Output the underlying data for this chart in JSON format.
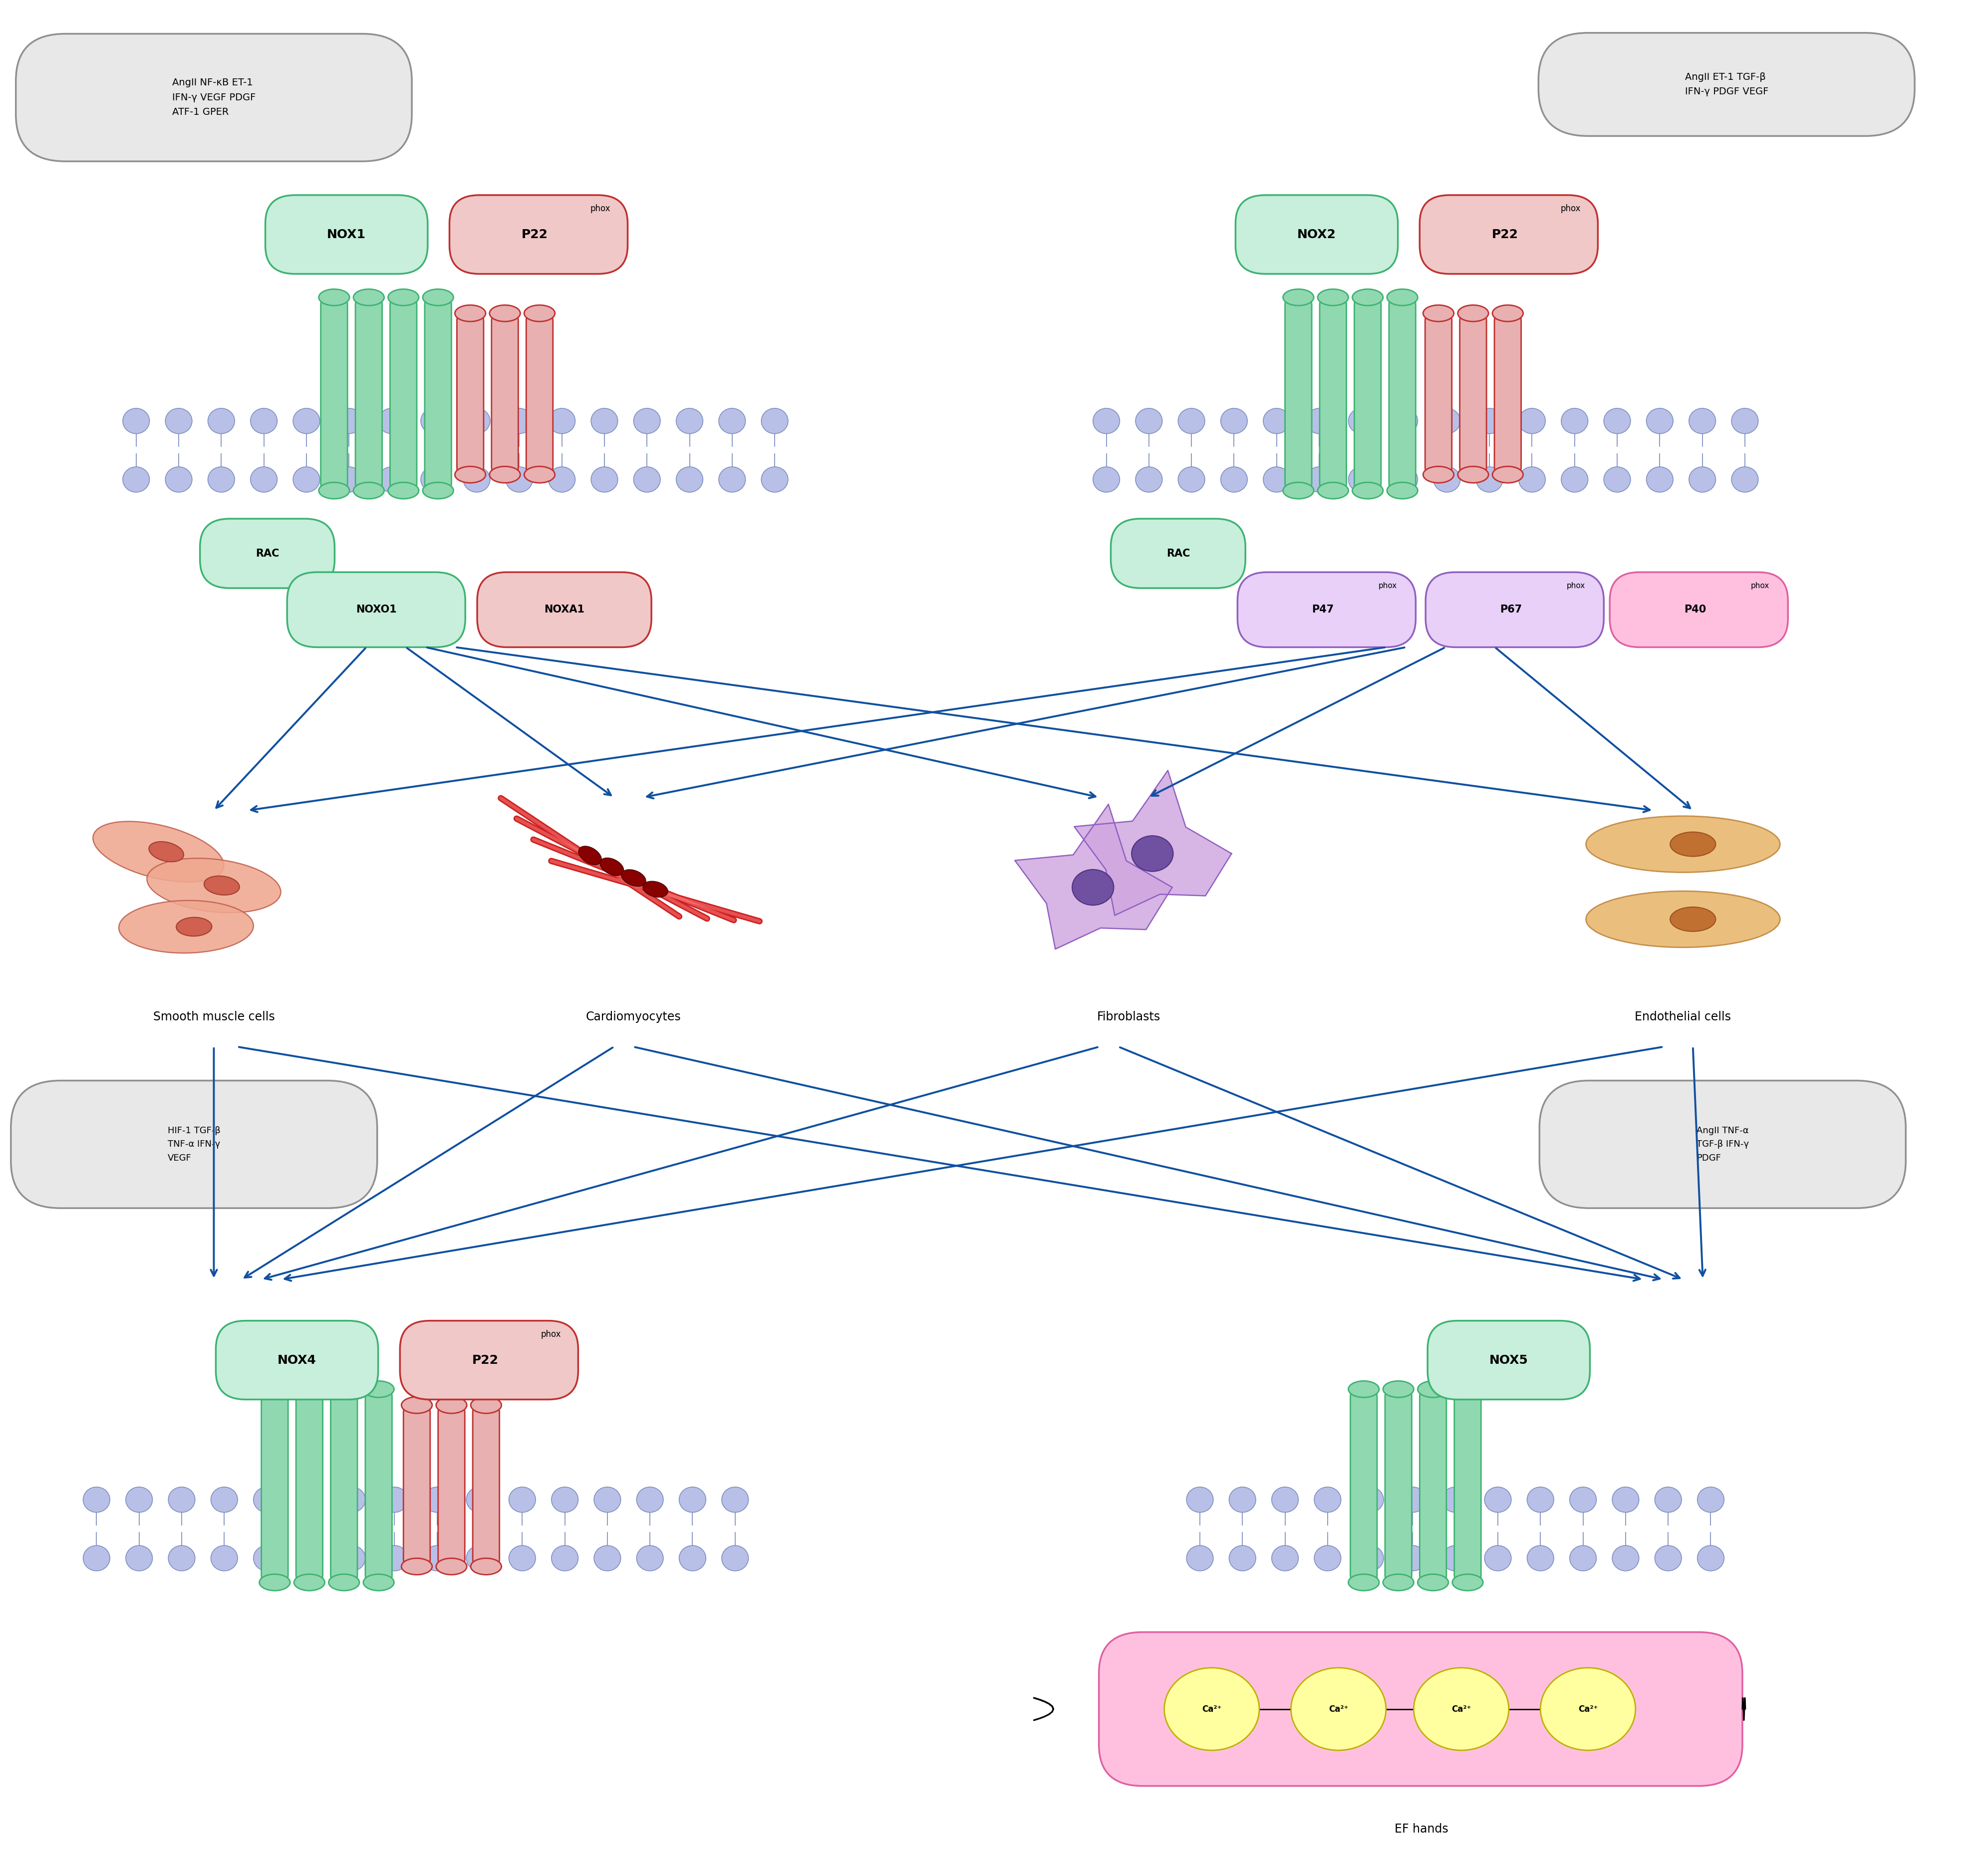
{
  "bg_color": "#ffffff",
  "box1_text": "AngII NF-κB ET-1\nIFN-γ VEGF PDGF\nATF-1 GPER",
  "box2_text": "AngII ET-1 TGF-β\nIFN-γ PDGF VEGF",
  "box3_text": "HIF-1 TGF-β\nTNF-α IFN-γ\nVEGF",
  "box4_text": "AngII TNF-α\nTGF-β IFN-γ\nPDGF",
  "cell1_label": "Smooth muscle cells",
  "cell2_label": "Cardiomyocytes",
  "cell3_label": "Fibroblasts",
  "cell4_label": "Endothelial cells",
  "ef_label": "EF hands",
  "green_box_fill": "#c8eedc",
  "green_box_edge": "#3cb371",
  "red_box_fill": "#f0c8c8",
  "red_box_edge": "#c03030",
  "purple_box_fill": "#e8d0f8",
  "purple_box_edge": "#9060c0",
  "yellow_box_fill": "#ffffa0",
  "yellow_box_edge": "#c0b000",
  "gray_box_fill": "#e8e8e8",
  "gray_box_edge": "#909090",
  "pink_fill": "#ffc0e0",
  "pink_edge": "#e060a0",
  "membrane_fill": "#b8c0e8",
  "membrane_edge": "#8090c0",
  "arrow_color": "#1050a0",
  "green_tube_fill": "#90d8b0",
  "green_tube_edge": "#3cb371",
  "red_tube_fill": "#e8b0b0",
  "red_tube_edge": "#c03030",
  "smooth_cell_fill": "#f0a890",
  "smooth_nucleus_fill": "#d06050",
  "cardio_fiber_color": "#cc2020",
  "fibro_cell_fill": "#d0a8e0",
  "fibro_nucleus_fill": "#7050a0",
  "endo_cell_fill": "#e8b870",
  "endo_nucleus_fill": "#c07030"
}
